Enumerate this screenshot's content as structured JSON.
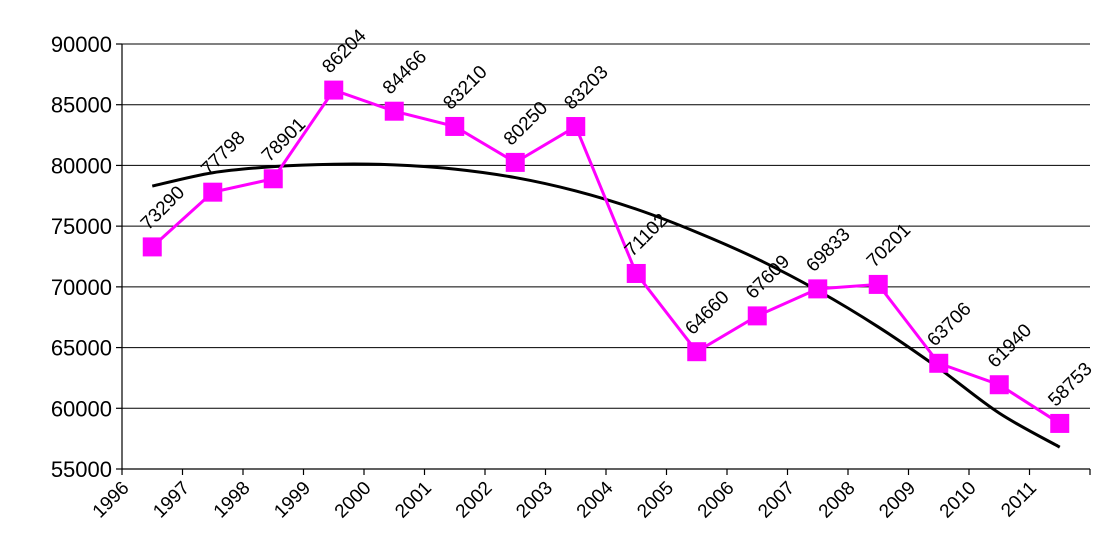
{
  "chart_data": {
    "type": "line",
    "categories": [
      "1996",
      "1997",
      "1998",
      "1999",
      "2000",
      "2001",
      "2002",
      "2003",
      "2004",
      "2005",
      "2006",
      "2007",
      "2008",
      "2009",
      "2010",
      "2011"
    ],
    "series": [
      {
        "values": [
          73290,
          77798,
          78901,
          86204,
          84466,
          83210,
          80250,
          83203,
          71102,
          64660,
          67609,
          69833,
          70201,
          63706,
          61940,
          58753
        ],
        "color": "#ff00ff",
        "marker": "square"
      }
    ],
    "trendline": {
      "type": "polynomial",
      "color": "#000000",
      "values": [
        78300,
        79400,
        79900,
        80100,
        80050,
        79700,
        79000,
        77900,
        76400,
        74500,
        72300,
        69700,
        66700,
        63300,
        59600,
        56800
      ]
    },
    "data_labels": [
      "73290",
      "77798",
      "78901",
      "86204",
      "84466",
      "83210",
      "80250",
      "83203",
      "71102",
      "64660",
      "67609",
      "69833",
      "70201",
      "63706",
      "61940",
      "58753"
    ],
    "y_ticks": [
      "55000",
      "60000",
      "65000",
      "70000",
      "75000",
      "80000",
      "85000",
      "90000"
    ],
    "ylim": [
      55000,
      90000
    ],
    "grid": true,
    "legend": "none"
  }
}
